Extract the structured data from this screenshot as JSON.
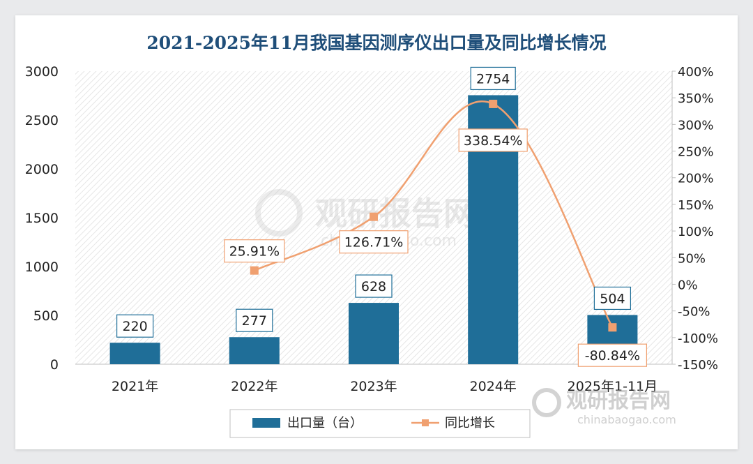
{
  "chart_data": {
    "type": "bar",
    "title": "2021-2025年11月我国基因测序仪出口量及同比增长情况",
    "categories": [
      "2021年",
      "2022年",
      "2023年",
      "2024年",
      "2025年1-11月"
    ],
    "series": [
      {
        "name": "出口量（台）",
        "type": "bar",
        "axis": "left",
        "values": [
          220,
          277,
          628,
          2754,
          504
        ],
        "labels": [
          "220",
          "277",
          "628",
          "2754",
          "504"
        ]
      },
      {
        "name": "同比增长",
        "type": "line",
        "axis": "right",
        "values": [
          null,
          25.91,
          126.71,
          338.54,
          -80.84
        ],
        "labels": [
          "",
          "25.91%",
          "126.71%",
          "338.54%",
          "-80.84%"
        ]
      }
    ],
    "y_left": {
      "ylim": [
        0,
        3000
      ],
      "ticks": [
        "0",
        "500",
        "1000",
        "1500",
        "2000",
        "2500",
        "3000"
      ]
    },
    "y_right": {
      "ylim": [
        -150,
        400
      ],
      "ticks": [
        "-150%",
        "-100%",
        "-50%",
        "0%",
        "50%",
        "100%",
        "150%",
        "200%",
        "250%",
        "300%",
        "350%",
        "400%"
      ]
    },
    "legend_position": "bottom-center",
    "colors": {
      "bar": "#1f6e98",
      "line": "#f0a070",
      "title": "#1f4e79",
      "label_border": "#1f6e98",
      "line_label_border": "#f0a070"
    }
  },
  "watermark": {
    "center_brand": "观研报告网",
    "center_url": "chinabaogao.com",
    "corner_brand": "观研报告网",
    "corner_url": "chinabaogao.com"
  }
}
